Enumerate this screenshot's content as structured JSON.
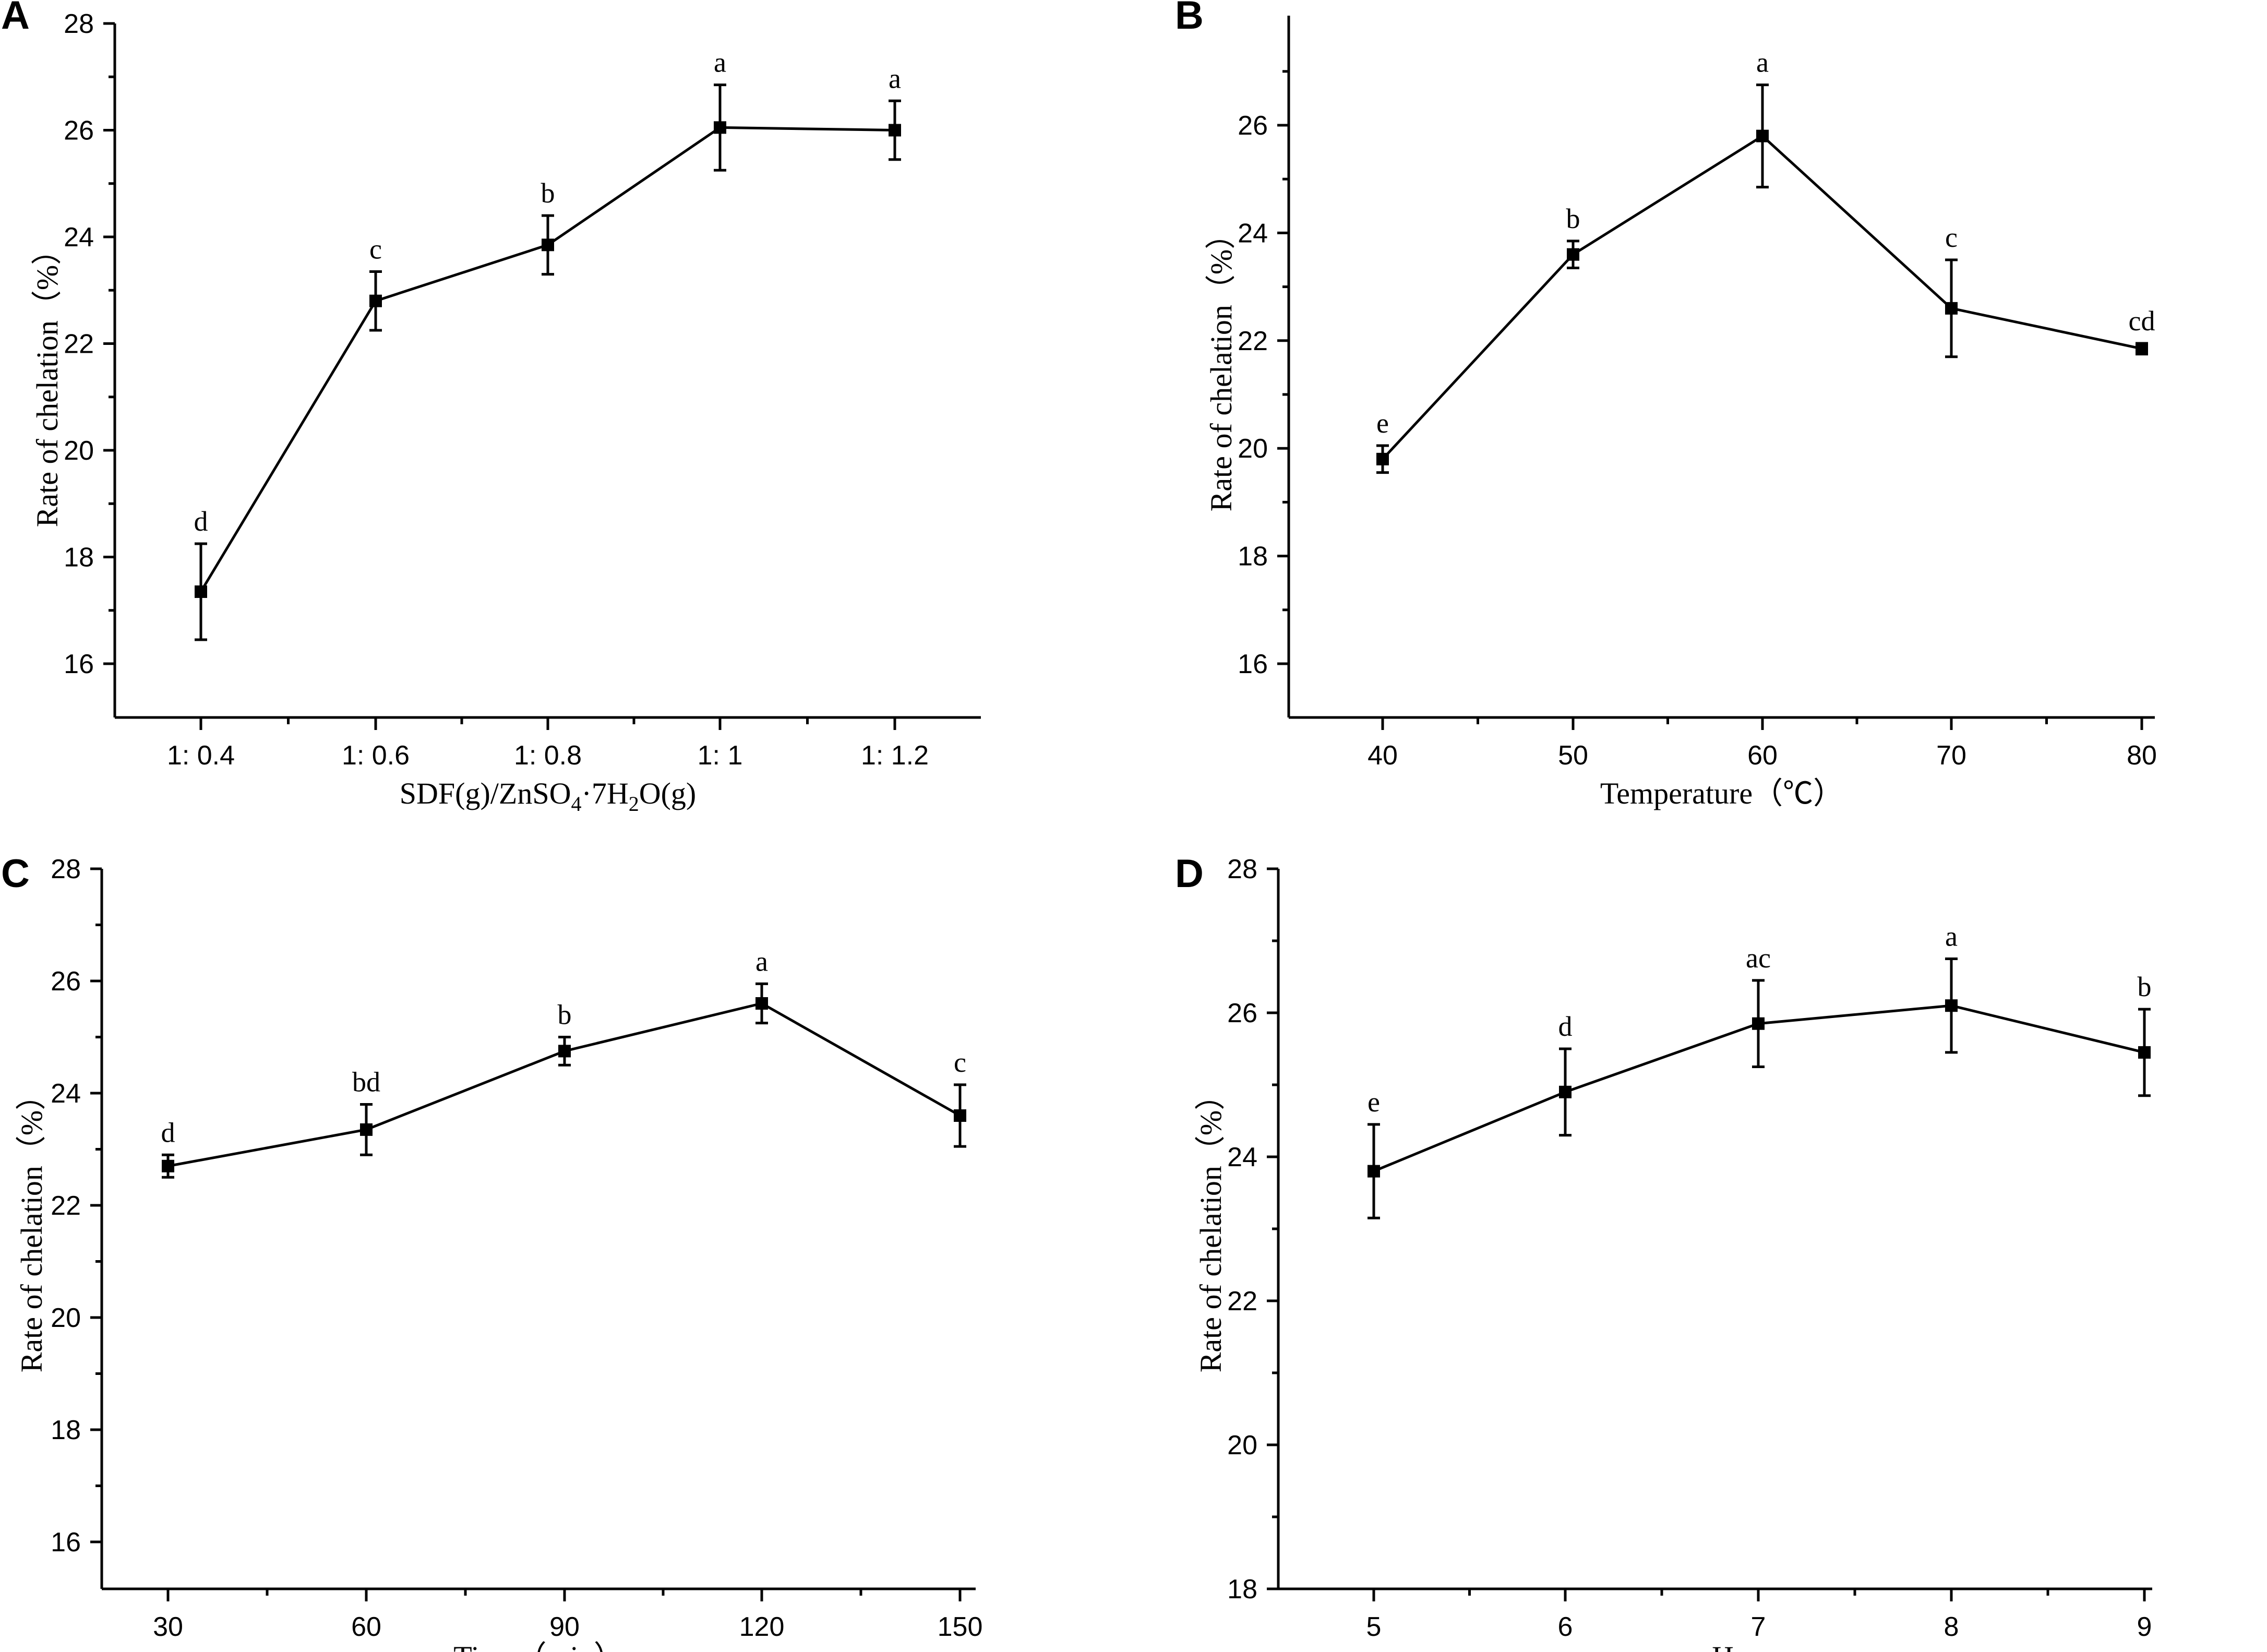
{
  "chart_data": [
    {
      "type": "line",
      "panel": "A",
      "xlabel_parts": [
        "SDF(g)/ZnSO",
        "4",
        "·7H",
        "2",
        "O(g)"
      ],
      "ylabel": "Rate of chelation（%）",
      "categories": [
        "1: 0.4",
        "1: 0.6",
        "1: 0.8",
        "1: 1",
        "1: 1.2"
      ],
      "values": [
        17.35,
        22.8,
        23.85,
        26.05,
        26.0
      ],
      "errors": [
        0.9,
        0.55,
        0.55,
        0.8,
        0.55
      ],
      "sig": [
        "d",
        "c",
        "b",
        "a",
        "a"
      ],
      "yticks": [
        "16",
        "18",
        "20",
        "22",
        "24",
        "26",
        "28"
      ],
      "ylim": [
        15,
        28
      ]
    },
    {
      "type": "line",
      "panel": "B",
      "xlabel": "Temperature（℃）",
      "ylabel": "Rate of chelation（%）",
      "categories": [
        "40",
        "50",
        "60",
        "70",
        "80"
      ],
      "values": [
        19.8,
        23.6,
        25.8,
        22.6,
        21.85
      ],
      "errors": [
        0.25,
        0.25,
        0.95,
        0.9,
        0.1
      ],
      "sig": [
        "e",
        "b",
        "a",
        "c",
        "cd"
      ],
      "yticks": [
        "16",
        "18",
        "20",
        "22",
        "24",
        "26"
      ],
      "ylim": [
        15,
        27.5
      ]
    },
    {
      "type": "line",
      "panel": "C",
      "xlabel": "Time（min）",
      "ylabel": "Rate of chelation（%）",
      "categories": [
        "30",
        "60",
        "90",
        "120",
        "150"
      ],
      "values": [
        22.7,
        23.35,
        24.75,
        25.6,
        23.6
      ],
      "errors": [
        0.2,
        0.45,
        0.25,
        0.35,
        0.55
      ],
      "sig": [
        "d",
        "bd",
        "b",
        "a",
        "c"
      ],
      "yticks": [
        "16",
        "18",
        "20",
        "22",
        "24",
        "26",
        "28"
      ],
      "ylim": [
        15,
        28
      ]
    },
    {
      "type": "line",
      "panel": "D",
      "xlabel": "pH",
      "ylabel": "Rate of chelation（%）",
      "categories": [
        "5",
        "6",
        "7",
        "8",
        "9"
      ],
      "values": [
        23.8,
        24.9,
        25.85,
        26.1,
        25.45
      ],
      "errors": [
        0.65,
        0.6,
        0.6,
        0.65,
        0.6
      ],
      "sig": [
        "e",
        "d",
        "ac",
        "a",
        "b"
      ],
      "yticks": [
        "18",
        "20",
        "22",
        "24",
        "26",
        "28"
      ],
      "ylim": [
        18,
        28
      ]
    }
  ]
}
